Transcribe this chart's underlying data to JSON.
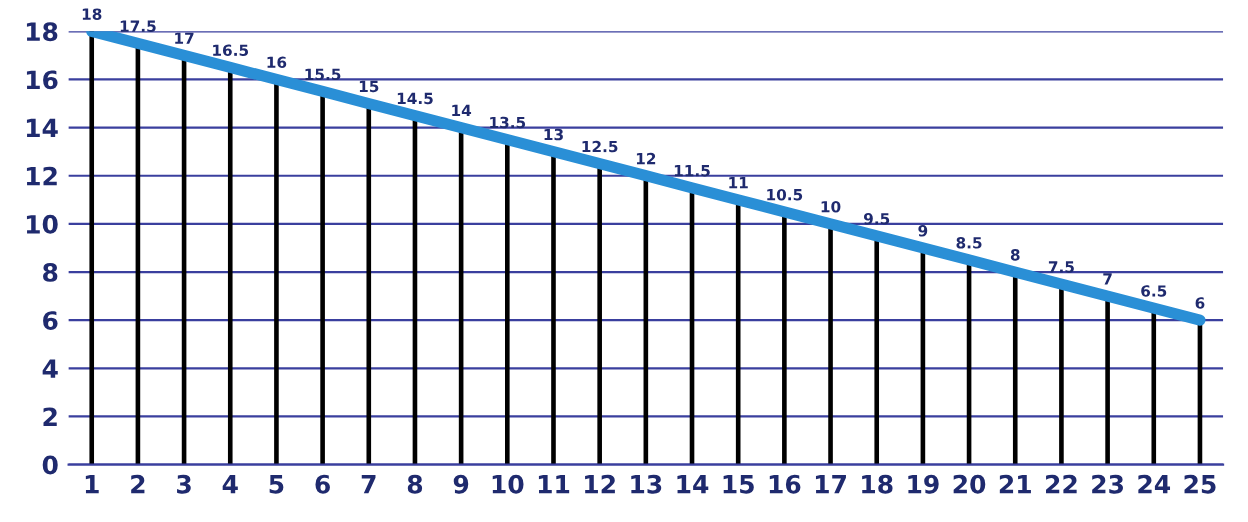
{
  "chart_data": {
    "type": "line",
    "categories": [
      "1",
      "2",
      "3",
      "4",
      "5",
      "6",
      "7",
      "8",
      "9",
      "10",
      "11",
      "12",
      "13",
      "14",
      "15",
      "16",
      "17",
      "18",
      "19",
      "20",
      "21",
      "22",
      "23",
      "24",
      "25"
    ],
    "series": [
      {
        "type": "bar",
        "color": "#000000",
        "values": [
          18,
          17.5,
          17,
          16.5,
          16,
          15.5,
          15,
          14.5,
          14,
          13.5,
          13,
          12.5,
          12,
          11.5,
          11,
          10.5,
          10,
          9.5,
          9,
          8.5,
          8,
          7.5,
          7,
          6.5,
          6
        ]
      },
      {
        "color": "#2a8fd6",
        "values": [
          18,
          17.5,
          17,
          16.5,
          16,
          15.5,
          15,
          14.5,
          14,
          13.5,
          13,
          12.5,
          12,
          11.5,
          11,
          10.5,
          10,
          9.5,
          9,
          8.5,
          8,
          7.5,
          7,
          6.5,
          6
        ],
        "value_labels": [
          "18",
          "17.5",
          "17",
          "16.5",
          "16",
          "15.5",
          "15",
          "14.5",
          "14",
          "13.5",
          "13",
          "12.5",
          "12",
          "11.5",
          "11",
          "10.5",
          "10",
          "9.5",
          "9",
          "8.5",
          "8",
          "7.5",
          "7",
          "6.5",
          "6"
        ]
      }
    ],
    "ylim": [
      0,
      18
    ],
    "yticks": [
      0,
      2,
      4,
      6,
      8,
      10,
      12,
      14,
      16,
      18
    ],
    "grid": "y",
    "marker": "none"
  }
}
